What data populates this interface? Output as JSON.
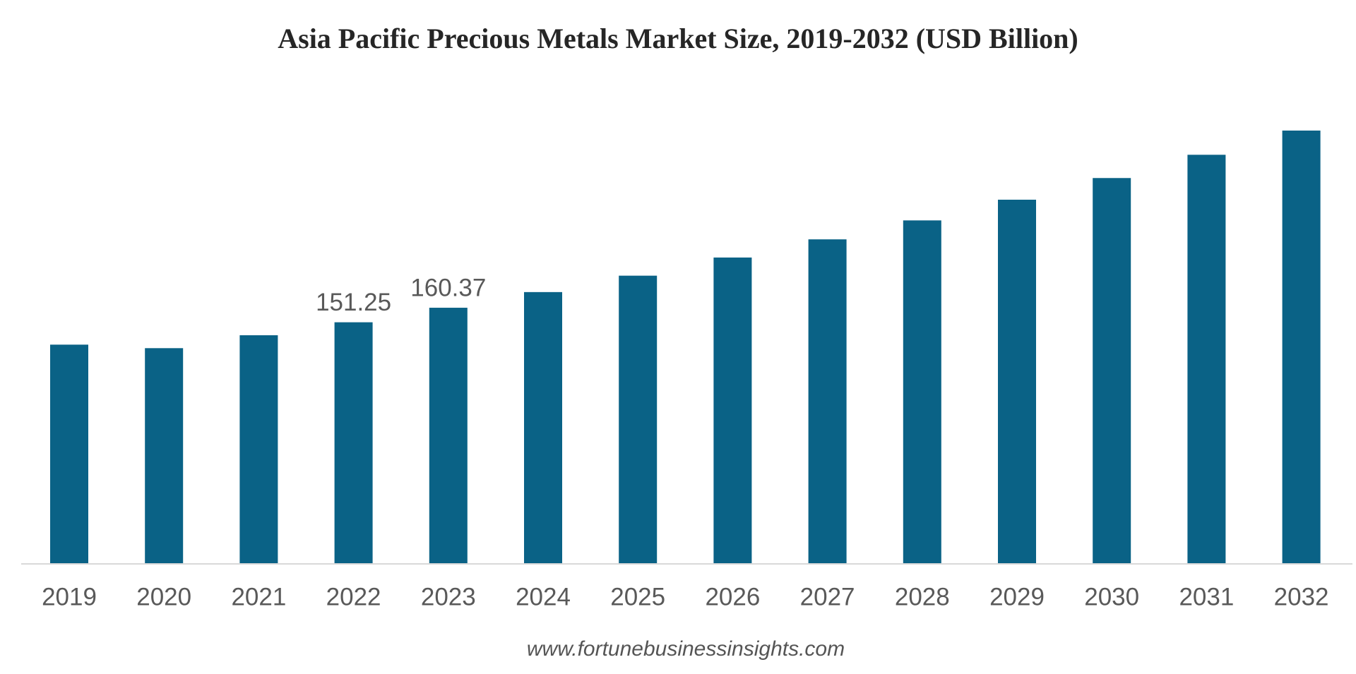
{
  "chart_data": {
    "type": "bar",
    "title": "Asia Pacific Precious Metals Market Size, 2019-2032 (USD Billion)",
    "categories": [
      "2019",
      "2020",
      "2021",
      "2022",
      "2023",
      "2024",
      "2025",
      "2026",
      "2027",
      "2028",
      "2029",
      "2030",
      "2031",
      "2032"
    ],
    "values": [
      137.2,
      135.0,
      143.1,
      151.25,
      160.37,
      170.2,
      180.5,
      191.9,
      203.3,
      215.2,
      228.2,
      241.8,
      256.4,
      271.6
    ],
    "value_labels": [
      null,
      null,
      null,
      "151.25",
      "160.37",
      null,
      null,
      null,
      null,
      null,
      null,
      null,
      null,
      null
    ],
    "color": "#0a6286",
    "source": "www.fortunebusinessinsights.com"
  }
}
